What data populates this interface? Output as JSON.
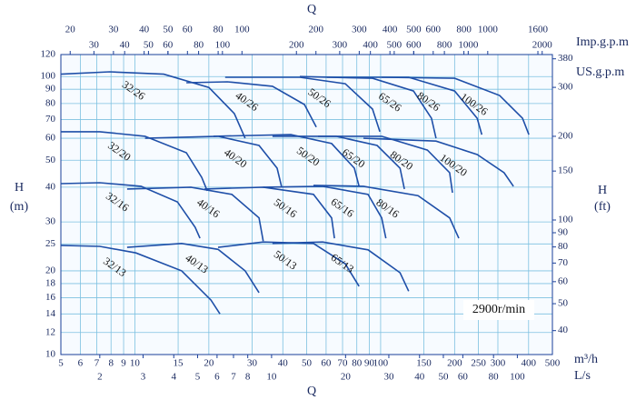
{
  "chart_data": {
    "type": "line",
    "x_title": "Q",
    "x_title_top": "Q",
    "y_title": "H",
    "y_unit": "(m)",
    "y2_title": "H",
    "y2_unit": "(ft)",
    "x_unit": "m³/h",
    "annotation": "2900r/min",
    "log_x": true,
    "log_y": true,
    "grid": true,
    "xlim": [
      5,
      500
    ],
    "xticks": [
      5,
      6,
      7,
      8,
      9,
      10,
      15,
      20,
      30,
      40,
      50,
      60,
      70,
      80,
      90,
      100,
      150,
      200,
      250,
      300,
      400,
      500
    ],
    "ylim": [
      10,
      120
    ],
    "yticks": [
      10,
      12,
      14,
      16,
      18,
      20,
      25,
      30,
      40,
      50,
      60,
      70,
      80,
      90,
      100,
      120
    ],
    "y2lim": [
      32.81,
      393.7
    ],
    "y2ticks": [
      40,
      50,
      60,
      70,
      80,
      90,
      100,
      150,
      200,
      300,
      380
    ],
    "x2_unit": "L/s",
    "x2lim": [
      1.389,
      138.9
    ],
    "x2ticks": [
      2,
      3,
      4,
      5,
      6,
      7,
      8,
      10,
      20,
      30,
      40,
      50,
      60,
      80,
      100
    ],
    "x3_unit": "Imp.g.p.m",
    "x3lim": [
      18.33,
      1833
    ],
    "x3ticks": [
      20,
      30,
      40,
      50,
      60,
      80,
      100,
      200,
      300,
      400,
      500,
      600,
      800,
      1000,
      1600
    ],
    "x4_unit": "US.g.p.m",
    "x4lim": [
      22.01,
      2201
    ],
    "x4ticks": [
      30,
      40,
      50,
      60,
      80,
      100,
      200,
      300,
      400,
      500,
      600,
      800,
      1000,
      2000
    ],
    "series": [
      {
        "name": "32/26",
        "color": "#1f4fa8",
        "x": [
          5,
          7.9,
          13.1,
          20,
          25.4,
          28.1
        ],
        "values": [
          102,
          104,
          102,
          91.4,
          73.6,
          60
        ]
      },
      {
        "name": "40/26",
        "color": "#1f4fa8",
        "x": [
          16.2,
          23.8,
          36.3,
          49,
          54.7
        ],
        "values": [
          95,
          95.7,
          92.3,
          79.3,
          65.8
        ]
      },
      {
        "name": "50/26",
        "color": "#1f4fa8",
        "x": [
          23.3,
          46.9,
          71.8,
          92.7,
          99.3
        ],
        "values": [
          99.4,
          99.4,
          94.2,
          76.4,
          63.3
        ]
      },
      {
        "name": "65/26",
        "color": "#1f4fa8",
        "x": [
          46.9,
          92.7,
          136,
          161,
          168
        ],
        "values": [
          100,
          98.6,
          88.7,
          70.8,
          60
        ]
      },
      {
        "name": "80/26",
        "color": "#1f4fa8",
        "x": [
          60.5,
          130,
          200,
          247,
          258
        ],
        "values": [
          99.4,
          99.4,
          88.7,
          70.8,
          61.8
        ]
      },
      {
        "name": "100/26",
        "color": "#1f4fa8",
        "x": [
          101,
          200,
          305,
          378,
          401
        ],
        "values": [
          99.4,
          98.6,
          85.5,
          70.8,
          61.8
        ]
      },
      {
        "name": "32/20",
        "color": "#1f4fa8",
        "x": [
          5,
          7.2,
          11,
          16.2,
          18.7,
          19.7
        ],
        "values": [
          63.3,
          63.3,
          61,
          53.2,
          43.4,
          38.8
        ]
      },
      {
        "name": "40/20",
        "color": "#1f4fa8",
        "x": [
          11,
          21.8,
          32,
          37.9,
          39.5
        ],
        "values": [
          60,
          61,
          56.5,
          46.8,
          40.3
        ]
      },
      {
        "name": "50/20",
        "color": "#1f4fa8",
        "x": [
          20.9,
          43.1,
          63.2,
          78.2,
          81.7
        ],
        "values": [
          61,
          61.8,
          57.4,
          46.8,
          40.3
        ]
      },
      {
        "name": "65/20",
        "color": "#1f4fa8",
        "x": [
          36.3,
          65.9,
          96.8,
          120,
          125
        ],
        "values": [
          61,
          61,
          56.5,
          46.8,
          39.4
        ]
      },
      {
        "name": "80/20",
        "color": "#1f4fa8",
        "x": [
          55.6,
          101,
          155,
          191,
          196
        ],
        "values": [
          61,
          61,
          54.4,
          45.1,
          38.2
        ]
      },
      {
        "name": "100/20",
        "color": "#1f4fa8",
        "x": [
          85.1,
          168,
          247,
          318,
          347
        ],
        "values": [
          60,
          58.6,
          52.4,
          45.1,
          40.3
        ]
      },
      {
        "name": "32/16",
        "color": "#1f4fa8",
        "x": [
          5,
          7.2,
          10.6,
          14.9,
          17.6,
          18.4
        ],
        "values": [
          41.2,
          41.5,
          40.3,
          35.4,
          28.7,
          26.2
        ]
      },
      {
        "name": "40/16",
        "color": "#1f4fa8",
        "x": [
          9.3,
          16.9,
          24.8,
          32,
          33.3
        ],
        "values": [
          39.4,
          40,
          37.7,
          31,
          25.6
        ]
      },
      {
        "name": "50/16",
        "color": "#1f4fa8",
        "x": [
          19.2,
          33.3,
          53.3,
          63.2,
          64.9
        ],
        "values": [
          39.4,
          40,
          37.7,
          31,
          26.2
        ]
      },
      {
        "name": "65/16",
        "color": "#1f4fa8",
        "x": [
          33.3,
          58.1,
          88.9,
          101,
          105
        ],
        "values": [
          40,
          40.3,
          37.7,
          31,
          26.2
        ]
      },
      {
        "name": "80/16",
        "color": "#1f4fa8",
        "x": [
          53.3,
          85.1,
          142,
          191,
          208
        ],
        "values": [
          40.6,
          40.3,
          37.3,
          31,
          26.2
        ]
      },
      {
        "name": "32/13",
        "color": "#1f4fa8",
        "x": [
          5,
          7.2,
          10.1,
          15.5,
          20.4,
          22.2
        ],
        "values": [
          24.7,
          24.5,
          23.2,
          20,
          15.7,
          14
        ]
      },
      {
        "name": "40/13",
        "color": "#1f4fa8",
        "x": [
          9.3,
          15.5,
          21.8,
          28.1,
          32
        ],
        "values": [
          24.3,
          25.1,
          23.9,
          20,
          16.7
        ]
      },
      {
        "name": "50/13",
        "color": "#1f4fa8",
        "x": [
          21.8,
          33.3,
          53.3,
          71.8,
          81.7
        ],
        "values": [
          24.3,
          25.4,
          25.1,
          21.2,
          17.6
        ]
      },
      {
        "name": "65/13",
        "color": "#1f4fa8",
        "x": [
          36.3,
          58.1,
          88.9,
          120,
          130
        ],
        "values": [
          25.1,
          25.4,
          23.8,
          19.7,
          16.9
        ]
      }
    ]
  }
}
